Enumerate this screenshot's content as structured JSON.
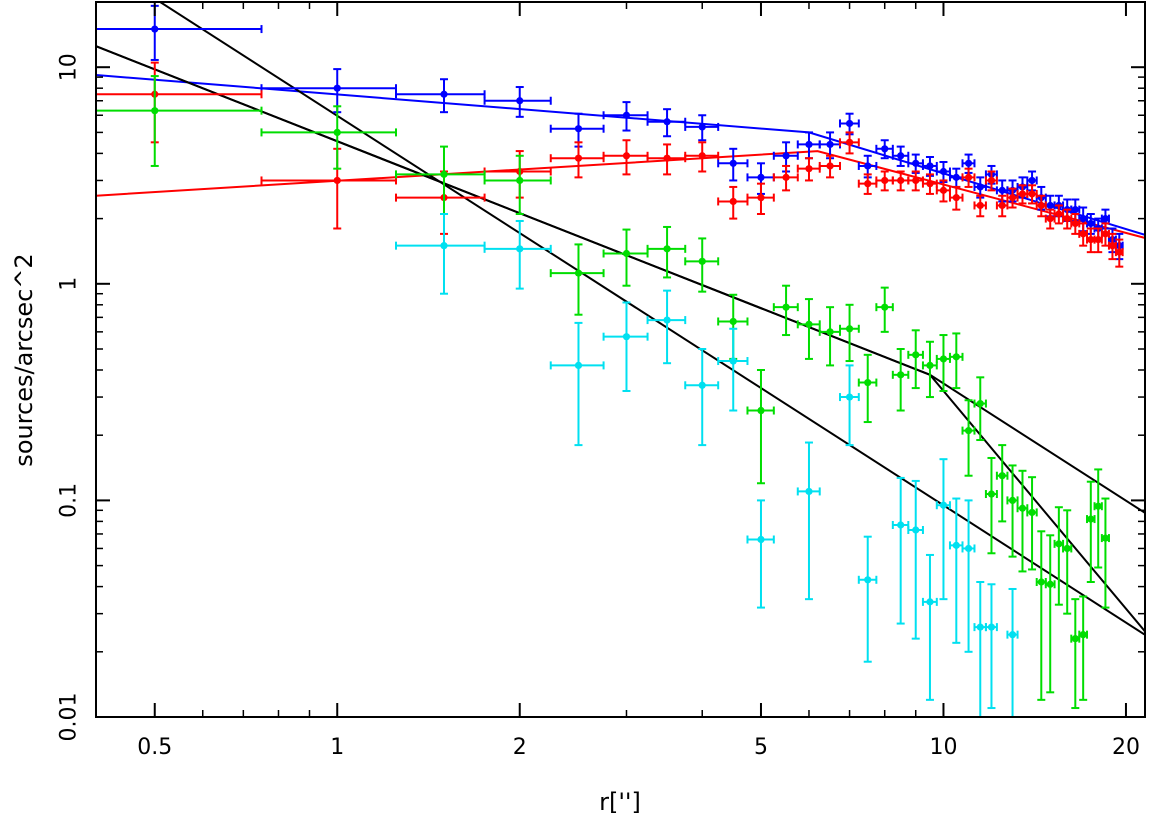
{
  "chart_data": {
    "type": "scatter",
    "xlabel": "r['']",
    "ylabel": "sources/arcsec^2",
    "x_scale": "log",
    "y_scale": "log",
    "xlim": [
      0.4,
      21.5
    ],
    "ylim": [
      0.01,
      20
    ],
    "x_ticks": [
      0.5,
      1,
      2,
      5,
      10,
      20
    ],
    "x_tick_labels": [
      "0.5",
      "1",
      "2",
      "5",
      "10",
      "20"
    ],
    "y_ticks": [
      0.01,
      0.1,
      1,
      10
    ],
    "y_tick_labels": [
      "0.01",
      "0.1",
      "1",
      "10"
    ],
    "grid": false,
    "legend": "none",
    "series": [
      {
        "color": "#0000ff",
        "points": [
          [
            0.5,
            15,
            0.25,
            4.2
          ],
          [
            1.0,
            8.0,
            0.25,
            1.8
          ],
          [
            1.5,
            7.5,
            0.25,
            1.3
          ],
          [
            2.0,
            7.0,
            0.25,
            1.1
          ],
          [
            2.5,
            5.2,
            0.25,
            0.9
          ],
          [
            3.0,
            6.0,
            0.25,
            0.9
          ],
          [
            3.5,
            5.6,
            0.25,
            0.8
          ],
          [
            4.0,
            5.3,
            0.25,
            0.7
          ],
          [
            4.5,
            3.6,
            0.25,
            0.6
          ],
          [
            5.0,
            3.1,
            0.25,
            0.5
          ],
          [
            5.5,
            3.9,
            0.25,
            0.6
          ],
          [
            6.0,
            4.4,
            0.25,
            0.6
          ],
          [
            6.5,
            4.4,
            0.25,
            0.6
          ],
          [
            7.0,
            5.5,
            0.25,
            0.6
          ],
          [
            7.5,
            3.5,
            0.25,
            0.4
          ],
          [
            8.0,
            4.2,
            0.25,
            0.4
          ],
          [
            8.5,
            3.9,
            0.25,
            0.4
          ],
          [
            9.0,
            3.6,
            0.25,
            0.35
          ],
          [
            9.5,
            3.5,
            0.25,
            0.35
          ],
          [
            10.0,
            3.3,
            0.25,
            0.35
          ],
          [
            10.5,
            3.1,
            0.25,
            0.3
          ],
          [
            11.0,
            3.6,
            0.25,
            0.35
          ],
          [
            11.5,
            2.8,
            0.25,
            0.3
          ],
          [
            12.0,
            3.2,
            0.25,
            0.3
          ],
          [
            12.5,
            2.7,
            0.25,
            0.3
          ],
          [
            13.0,
            2.7,
            0.25,
            0.3
          ],
          [
            13.5,
            2.8,
            0.25,
            0.3
          ],
          [
            14.0,
            3.0,
            0.25,
            0.3
          ],
          [
            14.5,
            2.5,
            0.25,
            0.3
          ],
          [
            15.0,
            2.3,
            0.25,
            0.25
          ],
          [
            15.5,
            2.3,
            0.25,
            0.25
          ],
          [
            16.0,
            2.2,
            0.25,
            0.25
          ],
          [
            16.5,
            2.2,
            0.25,
            0.25
          ],
          [
            17.0,
            2.0,
            0.25,
            0.25
          ],
          [
            17.5,
            1.9,
            0.25,
            0.2
          ],
          [
            18.0,
            1.8,
            0.25,
            0.2
          ],
          [
            18.5,
            2.0,
            0.25,
            0.2
          ],
          [
            19.0,
            1.6,
            0.25,
            0.2
          ],
          [
            19.5,
            1.5,
            0.25,
            0.2
          ]
        ]
      },
      {
        "color": "#ff0000",
        "points": [
          [
            0.5,
            7.5,
            0.25,
            3.0
          ],
          [
            1.0,
            3.0,
            0.25,
            1.2
          ],
          [
            1.5,
            2.5,
            0.25,
            0.8
          ],
          [
            2.0,
            3.3,
            0.25,
            0.8
          ],
          [
            2.5,
            3.8,
            0.25,
            0.7
          ],
          [
            3.0,
            3.9,
            0.25,
            0.7
          ],
          [
            3.5,
            3.8,
            0.25,
            0.6
          ],
          [
            4.0,
            3.9,
            0.25,
            0.6
          ],
          [
            4.5,
            2.4,
            0.25,
            0.4
          ],
          [
            5.0,
            2.5,
            0.25,
            0.4
          ],
          [
            5.5,
            3.1,
            0.25,
            0.4
          ],
          [
            6.0,
            3.4,
            0.25,
            0.4
          ],
          [
            6.5,
            3.5,
            0.25,
            0.4
          ],
          [
            7.0,
            4.5,
            0.25,
            0.5
          ],
          [
            7.5,
            2.9,
            0.25,
            0.3
          ],
          [
            8.0,
            3.0,
            0.25,
            0.3
          ],
          [
            8.5,
            3.0,
            0.25,
            0.3
          ],
          [
            9.0,
            3.0,
            0.25,
            0.3
          ],
          [
            9.5,
            2.9,
            0.25,
            0.3
          ],
          [
            10.0,
            2.7,
            0.25,
            0.3
          ],
          [
            10.5,
            2.5,
            0.25,
            0.3
          ],
          [
            11.0,
            3.1,
            0.25,
            0.3
          ],
          [
            11.5,
            2.3,
            0.25,
            0.25
          ],
          [
            12.0,
            3.0,
            0.25,
            0.3
          ],
          [
            12.5,
            2.3,
            0.25,
            0.25
          ],
          [
            13.0,
            2.5,
            0.25,
            0.25
          ],
          [
            13.5,
            2.6,
            0.25,
            0.25
          ],
          [
            14.0,
            2.6,
            0.25,
            0.25
          ],
          [
            14.5,
            2.3,
            0.25,
            0.25
          ],
          [
            15.0,
            2.0,
            0.25,
            0.2
          ],
          [
            15.5,
            2.1,
            0.25,
            0.2
          ],
          [
            16.0,
            2.0,
            0.25,
            0.2
          ],
          [
            16.5,
            1.9,
            0.25,
            0.2
          ],
          [
            17.0,
            1.7,
            0.25,
            0.2
          ],
          [
            17.5,
            1.6,
            0.25,
            0.2
          ],
          [
            18.0,
            1.6,
            0.25,
            0.2
          ],
          [
            18.5,
            1.7,
            0.25,
            0.2
          ],
          [
            19.0,
            1.5,
            0.25,
            0.2
          ],
          [
            19.5,
            1.4,
            0.25,
            0.2
          ]
        ]
      },
      {
        "color": "#00dd00",
        "points": [
          [
            0.5,
            6.3,
            0.25,
            2.8
          ],
          [
            1.0,
            5.0,
            0.25,
            1.6
          ],
          [
            1.5,
            3.2,
            0.25,
            1.1
          ],
          [
            2.0,
            3.0,
            0.25,
            0.9
          ],
          [
            2.5,
            1.12,
            0.25,
            0.4
          ],
          [
            3.0,
            1.38,
            0.25,
            0.4
          ],
          [
            3.5,
            1.45,
            0.25,
            0.38
          ],
          [
            4.0,
            1.27,
            0.25,
            0.35
          ],
          [
            4.5,
            0.67,
            0.25,
            0.22
          ],
          [
            5.0,
            0.26,
            0.25,
            0.14
          ],
          [
            5.5,
            0.78,
            0.25,
            0.2
          ],
          [
            6.0,
            0.65,
            0.25,
            0.2
          ],
          [
            6.5,
            0.6,
            0.25,
            0.18
          ],
          [
            7.0,
            0.62,
            0.25,
            0.18
          ],
          [
            7.5,
            0.35,
            0.25,
            0.12
          ],
          [
            8.0,
            0.78,
            0.25,
            0.18
          ],
          [
            8.5,
            0.38,
            0.25,
            0.12
          ],
          [
            9.0,
            0.47,
            0.25,
            0.14
          ],
          [
            9.5,
            0.42,
            0.25,
            0.12
          ],
          [
            10.0,
            0.45,
            0.25,
            0.13
          ],
          [
            10.5,
            0.46,
            0.25,
            0.13
          ],
          [
            11.0,
            0.21,
            0.25,
            0.08
          ],
          [
            11.5,
            0.28,
            0.25,
            0.09
          ],
          [
            12.0,
            0.107,
            0.25,
            0.05
          ],
          [
            12.5,
            0.13,
            0.25,
            0.05
          ],
          [
            13.0,
            0.1,
            0.25,
            0.045
          ],
          [
            13.5,
            0.092,
            0.25,
            0.045
          ],
          [
            14.0,
            0.088,
            0.25,
            0.04
          ],
          [
            14.5,
            0.042,
            0.25,
            0.03
          ],
          [
            15.0,
            0.041,
            0.25,
            0.028
          ],
          [
            15.5,
            0.063,
            0.25,
            0.03
          ],
          [
            16.0,
            0.06,
            0.25,
            0.03
          ],
          [
            16.5,
            0.023,
            0.25,
            0.012
          ],
          [
            17.0,
            0.024,
            0.25,
            0.012
          ],
          [
            17.5,
            0.082,
            0.25,
            0.04
          ],
          [
            18.0,
            0.094,
            0.25,
            0.045
          ],
          [
            18.5,
            0.067,
            0.25,
            0.035
          ]
        ]
      },
      {
        "color": "#00e0f0",
        "points": [
          [
            1.5,
            1.5,
            0.25,
            0.6
          ],
          [
            2.0,
            1.45,
            0.25,
            0.5
          ],
          [
            2.5,
            0.42,
            0.25,
            0.24
          ],
          [
            3.0,
            0.57,
            0.25,
            0.25
          ],
          [
            3.5,
            0.68,
            0.25,
            0.25
          ],
          [
            4.0,
            0.34,
            0.25,
            0.16
          ],
          [
            4.5,
            0.44,
            0.25,
            0.18
          ],
          [
            5.0,
            0.066,
            0.25,
            0.034
          ],
          [
            6.0,
            0.11,
            0.25,
            0.075
          ],
          [
            7.0,
            0.3,
            0.25,
            0.12
          ],
          [
            7.5,
            0.043,
            0.25,
            0.025
          ],
          [
            8.5,
            0.077,
            0.25,
            0.05
          ],
          [
            9.0,
            0.073,
            0.25,
            0.05
          ],
          [
            9.5,
            0.034,
            0.25,
            0.022
          ],
          [
            10.0,
            0.095,
            0.25,
            0.06
          ],
          [
            10.5,
            0.062,
            0.25,
            0.04
          ],
          [
            11.0,
            0.06,
            0.25,
            0.04
          ],
          [
            11.5,
            0.026,
            0.25,
            0.016
          ],
          [
            12.0,
            0.026,
            0.25,
            0.015
          ],
          [
            13.0,
            0.024,
            0.25,
            0.015
          ]
        ]
      }
    ],
    "fit_lines": [
      {
        "color": "#0000ff",
        "points": [
          [
            0.4,
            9.2
          ],
          [
            6.0,
            5.0
          ],
          [
            22,
            1.65
          ]
        ]
      },
      {
        "color": "#ff0000",
        "points": [
          [
            0.4,
            2.55
          ],
          [
            6.2,
            4.1
          ],
          [
            22,
            1.6
          ]
        ]
      },
      {
        "color": "#000000",
        "points": [
          [
            0.4,
            31
          ],
          [
            22,
            0.023
          ]
        ]
      },
      {
        "color": "#000000",
        "points": [
          [
            0.4,
            12.5
          ],
          [
            9.5,
            0.38
          ],
          [
            22,
            0.023
          ]
        ]
      },
      {
        "color": "#000000",
        "points": [
          [
            0.4,
            12.5
          ],
          [
            9.5,
            0.38
          ],
          [
            22,
            0.084
          ]
        ]
      }
    ]
  }
}
